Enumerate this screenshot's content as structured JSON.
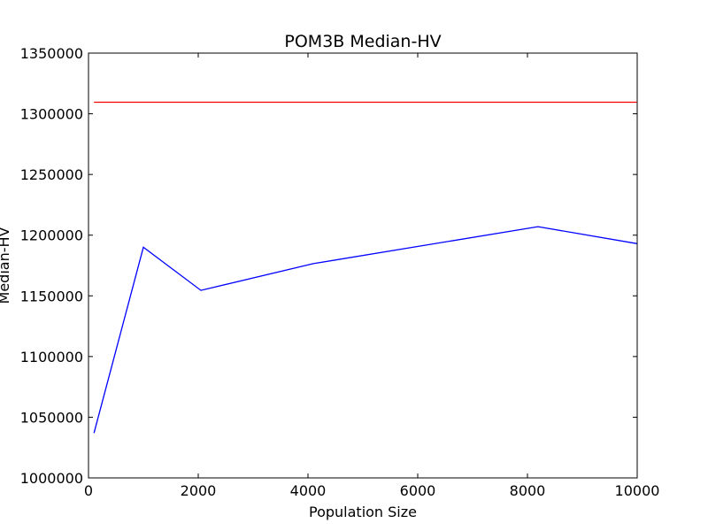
{
  "chart_data": {
    "type": "line",
    "title": "POM3B Median-HV",
    "xlabel": "Population Size",
    "ylabel": "Median-HV",
    "xlim": [
      0,
      10000
    ],
    "ylim": [
      1000000,
      1350000
    ],
    "xticks": [
      0,
      2000,
      4000,
      6000,
      8000,
      10000
    ],
    "yticks": [
      1000000,
      1050000,
      1100000,
      1150000,
      1200000,
      1250000,
      1300000,
      1350000
    ],
    "grid": false,
    "series": [
      {
        "color": "#0000ff",
        "x": [
          100,
          1000,
          2048,
          4096,
          8192,
          10000
        ],
        "y": [
          1037000,
          1190000,
          1154500,
          1176500,
          1207000,
          1193000
        ]
      },
      {
        "color": "#ff0000",
        "x": [
          100,
          10000
        ],
        "y": [
          1309500,
          1309500
        ]
      }
    ]
  }
}
